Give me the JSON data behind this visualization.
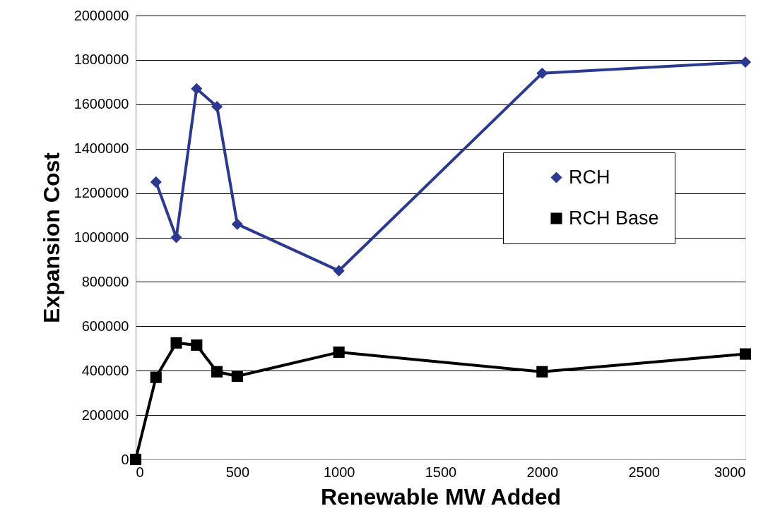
{
  "chart_data": {
    "type": "line",
    "xlabel": "Renewable MW Added",
    "ylabel": "Expansion Cost",
    "xlim": [
      0,
      3000
    ],
    "xticks": [
      0,
      500,
      1000,
      1500,
      2000,
      2500,
      3000
    ],
    "ylim": [
      0,
      2000000
    ],
    "yticks": [
      0,
      200000,
      400000,
      600000,
      800000,
      1000000,
      1200000,
      1400000,
      1600000,
      1800000,
      2000000
    ],
    "grid": "y",
    "legend": "right",
    "line_style": "solid",
    "series": [
      {
        "name": "RCH",
        "color": "#2b3990",
        "marker": "diamond",
        "x": [
          100,
          200,
          300,
          400,
          500,
          1000,
          2000,
          3000
        ],
        "values": [
          1250000,
          1000000,
          1670000,
          1590000,
          1060000,
          850000,
          1740000,
          1790000
        ]
      },
      {
        "name": "RCH Base",
        "color": "#000000",
        "marker": "square",
        "x": [
          0,
          100,
          200,
          300,
          400,
          500,
          1000,
          2000,
          3000
        ],
        "values": [
          0,
          370000,
          525000,
          515000,
          395000,
          375000,
          483000,
          395000,
          475000
        ]
      }
    ]
  }
}
